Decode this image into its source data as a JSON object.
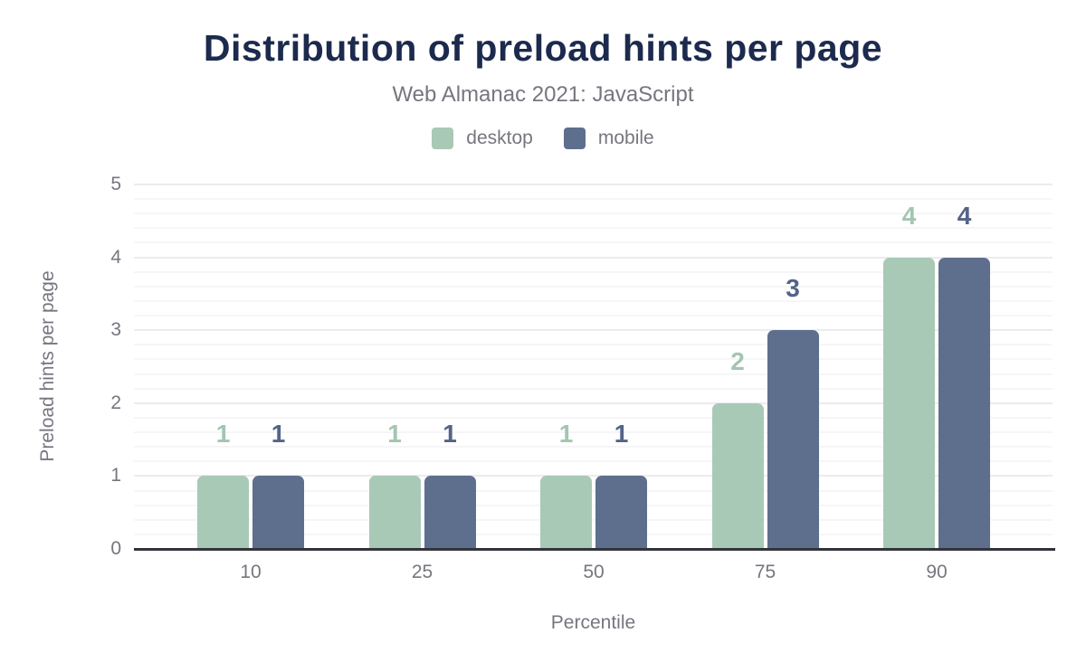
{
  "chart": {
    "title": "Distribution of preload hints per page",
    "subtitle": "Web Almanac 2021: JavaScript",
    "x_label": "Percentile",
    "y_label": "Preload hints per page"
  },
  "chart_data": {
    "type": "bar",
    "title": "Distribution of preload hints per page",
    "subtitle": "Web Almanac 2021: JavaScript",
    "xlabel": "Percentile",
    "ylabel": "Preload hints per page",
    "categories": [
      "10",
      "25",
      "50",
      "75",
      "90"
    ],
    "series": [
      {
        "name": "desktop",
        "color": "#a8c9b6",
        "label_color": "#a2c6b1",
        "values": [
          1,
          1,
          1,
          2,
          4
        ]
      },
      {
        "name": "mobile",
        "color": "#5e6f8e",
        "label_color": "#536487",
        "values": [
          1,
          1,
          1,
          3,
          4
        ]
      }
    ],
    "ylim": [
      0,
      5
    ],
    "yticks": [
      0,
      1,
      2,
      3,
      4,
      5
    ],
    "grid": {
      "major_step": 1,
      "minor_step": 0.2,
      "major_on": true,
      "minor_on": true
    },
    "legend_position": "top",
    "data_labels": true
  },
  "colors": {
    "background": "#ffffff",
    "title": "#1c2a4d",
    "text_muted": "#76767f",
    "axis_line": "#33343b",
    "grid_major": "#ebebf0",
    "grid_minor": "#f6f6f8"
  }
}
